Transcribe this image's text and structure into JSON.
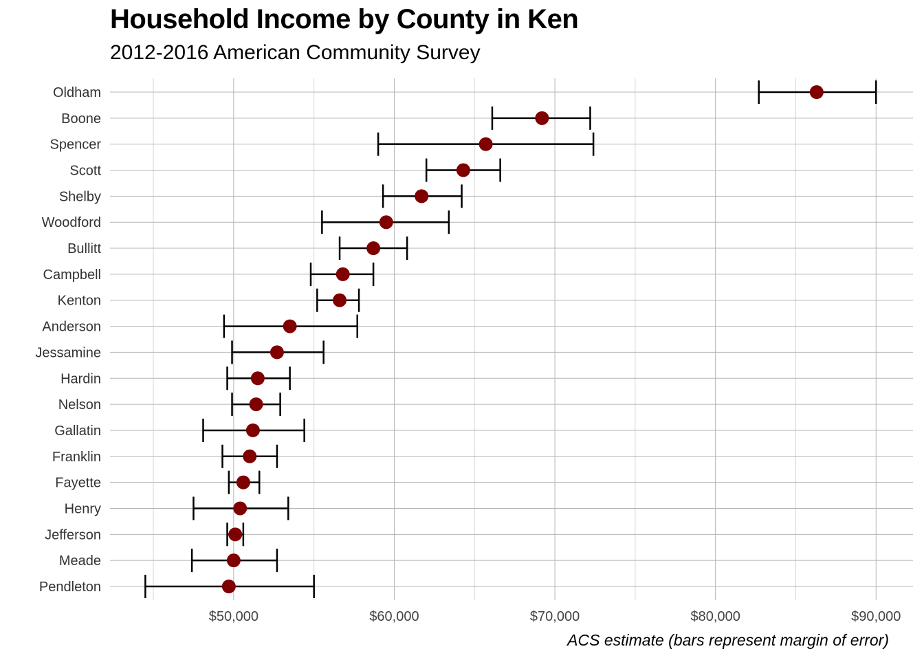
{
  "chart_data": {
    "type": "scatter",
    "title": "Household Income by County in Ken",
    "subtitle": "2012-2016 American Community Survey",
    "xlabel": "ACS estimate (bars represent margin of error)",
    "ylabel": "",
    "xlim": [
      42300,
      92300
    ],
    "x_ticks": [
      50000,
      60000,
      70000,
      80000,
      90000
    ],
    "x_tick_labels": [
      "$50,000",
      "$60,000",
      "$70,000",
      "$80,000",
      "$90,000"
    ],
    "grid": true,
    "legend": "none",
    "point_color": "#7f0000",
    "errorbar_color": "#000000",
    "categories": [
      "Oldham",
      "Boone",
      "Spencer",
      "Scott",
      "Shelby",
      "Woodford",
      "Bullitt",
      "Campbell",
      "Kenton",
      "Anderson",
      "Jessamine",
      "Hardin",
      "Nelson",
      "Gallatin",
      "Franklin",
      "Fayette",
      "Henry",
      "Jefferson",
      "Meade",
      "Pendleton"
    ],
    "series": [
      {
        "estimate": [
          86300,
          69200,
          65700,
          64300,
          61700,
          59500,
          58700,
          56800,
          56600,
          53500,
          52700,
          51500,
          51400,
          51200,
          51000,
          50600,
          50400,
          50100,
          50000,
          49700
        ],
        "lower": [
          82700,
          66100,
          59000,
          62000,
          59300,
          55500,
          56600,
          54800,
          55200,
          49400,
          49900,
          49600,
          49900,
          48100,
          49300,
          49700,
          47500,
          49600,
          47400,
          44500
        ],
        "upper": [
          90000,
          72200,
          72400,
          66600,
          64200,
          63400,
          60800,
          58700,
          57800,
          57700,
          55600,
          53500,
          52900,
          54400,
          52700,
          51600,
          53400,
          50600,
          52700,
          55000
        ]
      }
    ]
  }
}
